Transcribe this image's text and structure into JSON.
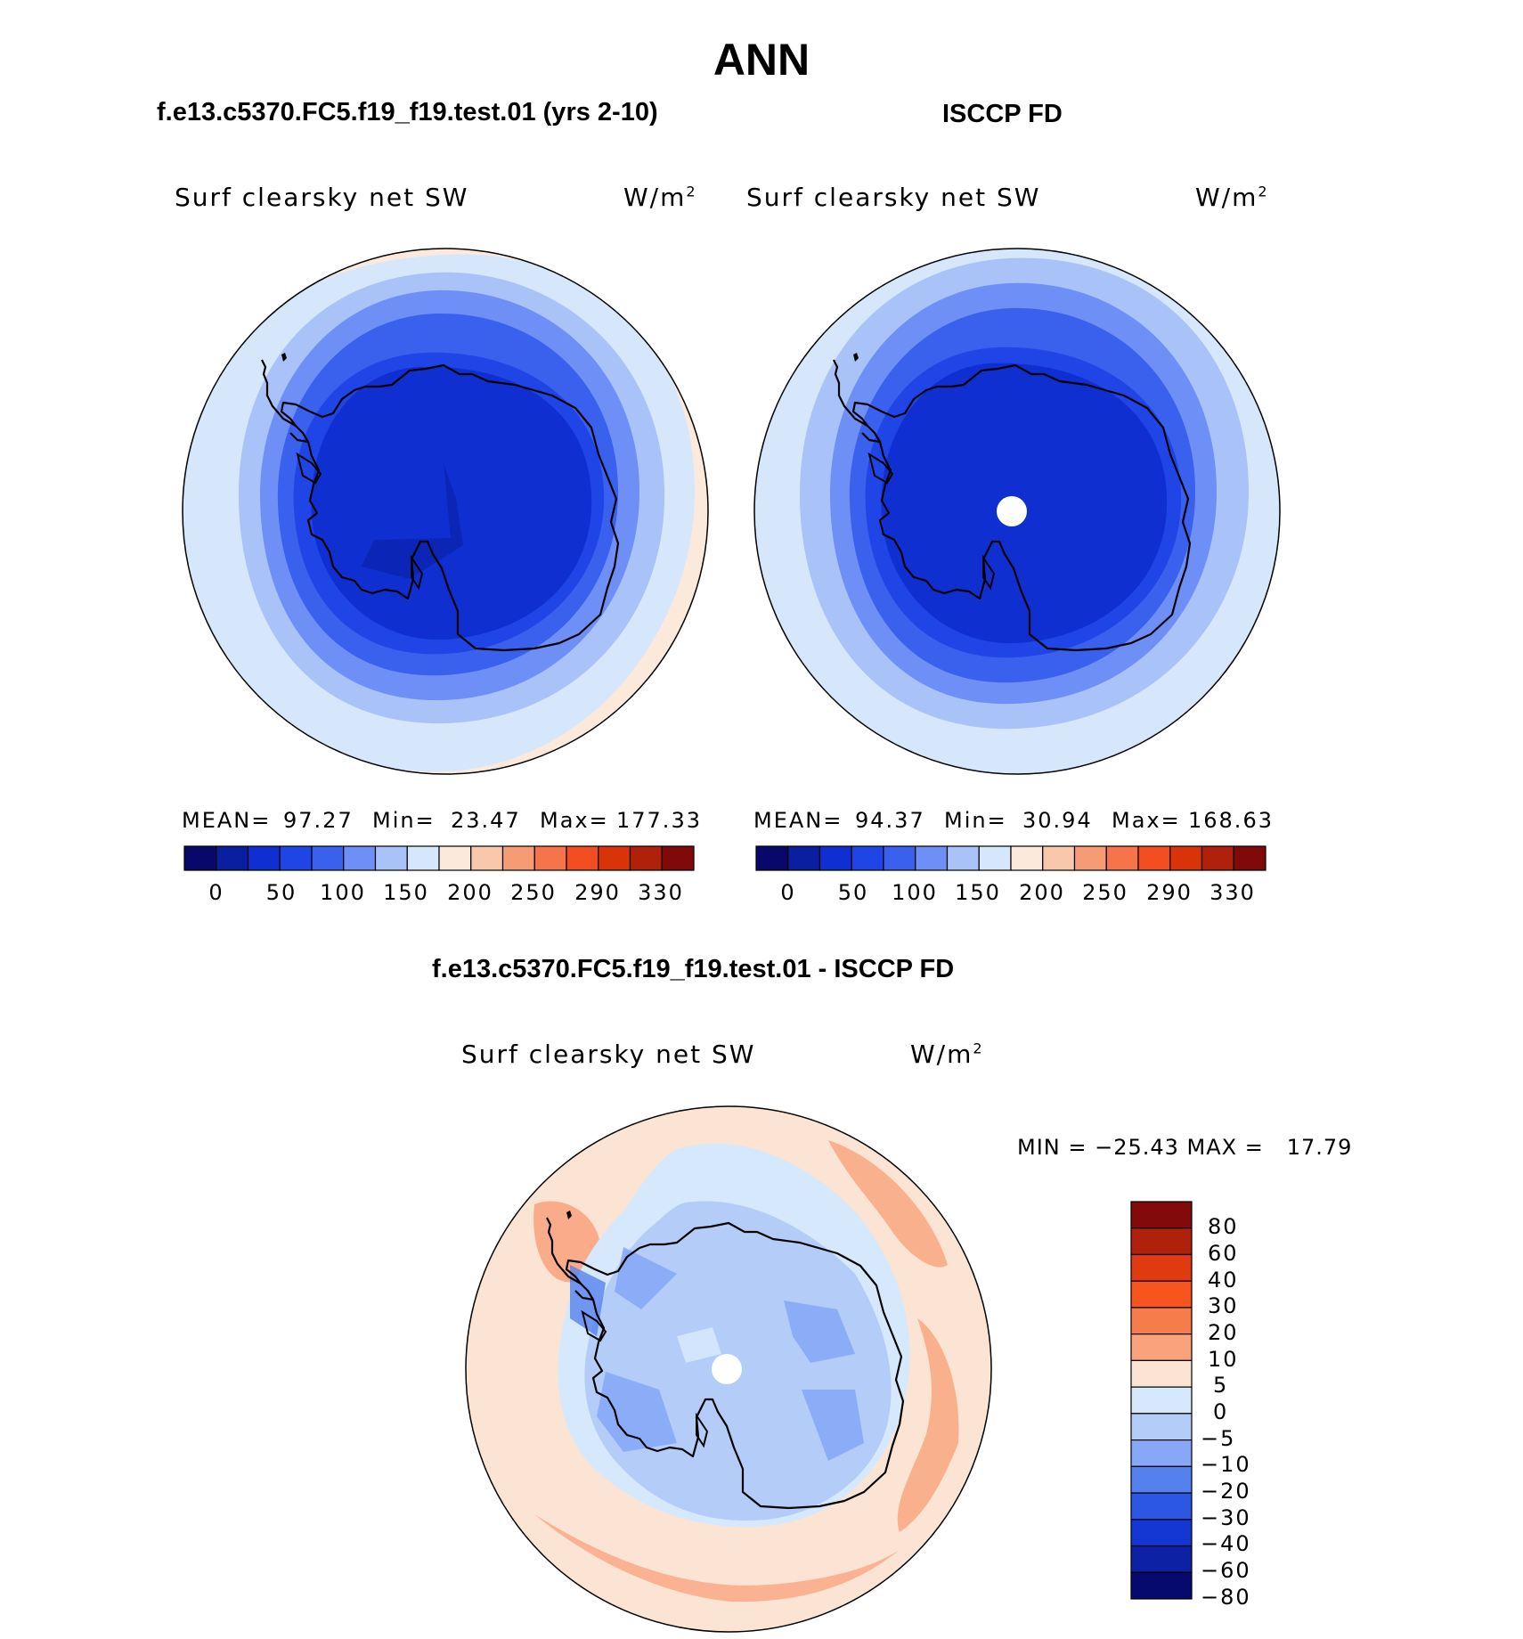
{
  "main_title": "ANN",
  "panels": [
    {
      "id": "model",
      "header": "f.e13.c5370.FC5.f19_f19.test.01 (yrs 2-10)",
      "variable": "Surf clearsky net SW",
      "units": "W/m",
      "units_exp": "2",
      "stats": {
        "mean_label": "MEAN=",
        "mean": "97.27",
        "min_label": "Min=",
        "min": "23.47",
        "max_label": "Max=",
        "max": "177.33"
      },
      "colorbar_labels": [
        "0",
        "50",
        "100",
        "150",
        "200",
        "250",
        "290",
        "330"
      ]
    },
    {
      "id": "obs",
      "header": "ISCCP FD",
      "variable": "Surf clearsky net SW",
      "units": "W/m",
      "units_exp": "2",
      "stats": {
        "mean_label": "MEAN=",
        "mean": "94.37",
        "min_label": "Min=",
        "min": "30.94",
        "max_label": "Max=",
        "max": "168.63"
      },
      "colorbar_labels": [
        "0",
        "50",
        "100",
        "150",
        "200",
        "250",
        "290",
        "330"
      ]
    }
  ],
  "diff_panel": {
    "header": "f.e13.c5370.FC5.f19_f19.test.01 - ISCCP FD",
    "variable": "Surf clearsky net SW",
    "units": "W/m",
    "units_exp": "2",
    "minmax": "MIN = −25.43 MAX =   17.79",
    "colorbar_labels": [
      "80",
      "60",
      "40",
      "30",
      "20",
      "10",
      "5",
      "0",
      "−5",
      "−10",
      "−20",
      "−30",
      "−40",
      "−60",
      "−80"
    ]
  },
  "colors": {
    "field_scale": [
      "#08086b",
      "#0a1fa0",
      "#0f2fd0",
      "#1f45e6",
      "#3a60ee",
      "#6e90f6",
      "#a9c3f8",
      "#d6e6fb",
      "#fbe9dc",
      "#f9c7aa",
      "#f59c74",
      "#f5744a",
      "#f34d22",
      "#d83309",
      "#b0210b",
      "#800a0a"
    ],
    "diff_scale": [
      "#820a0a",
      "#b0210b",
      "#e03a10",
      "#f7541e",
      "#f77c4b",
      "#f9a27c",
      "#fbe4d3",
      "#d6e8fb",
      "#b3ccf8",
      "#86a8f6",
      "#5581ef",
      "#2c57e5",
      "#1436d3",
      "#0c21a3",
      "#060a6e"
    ],
    "coast": "#000000"
  }
}
